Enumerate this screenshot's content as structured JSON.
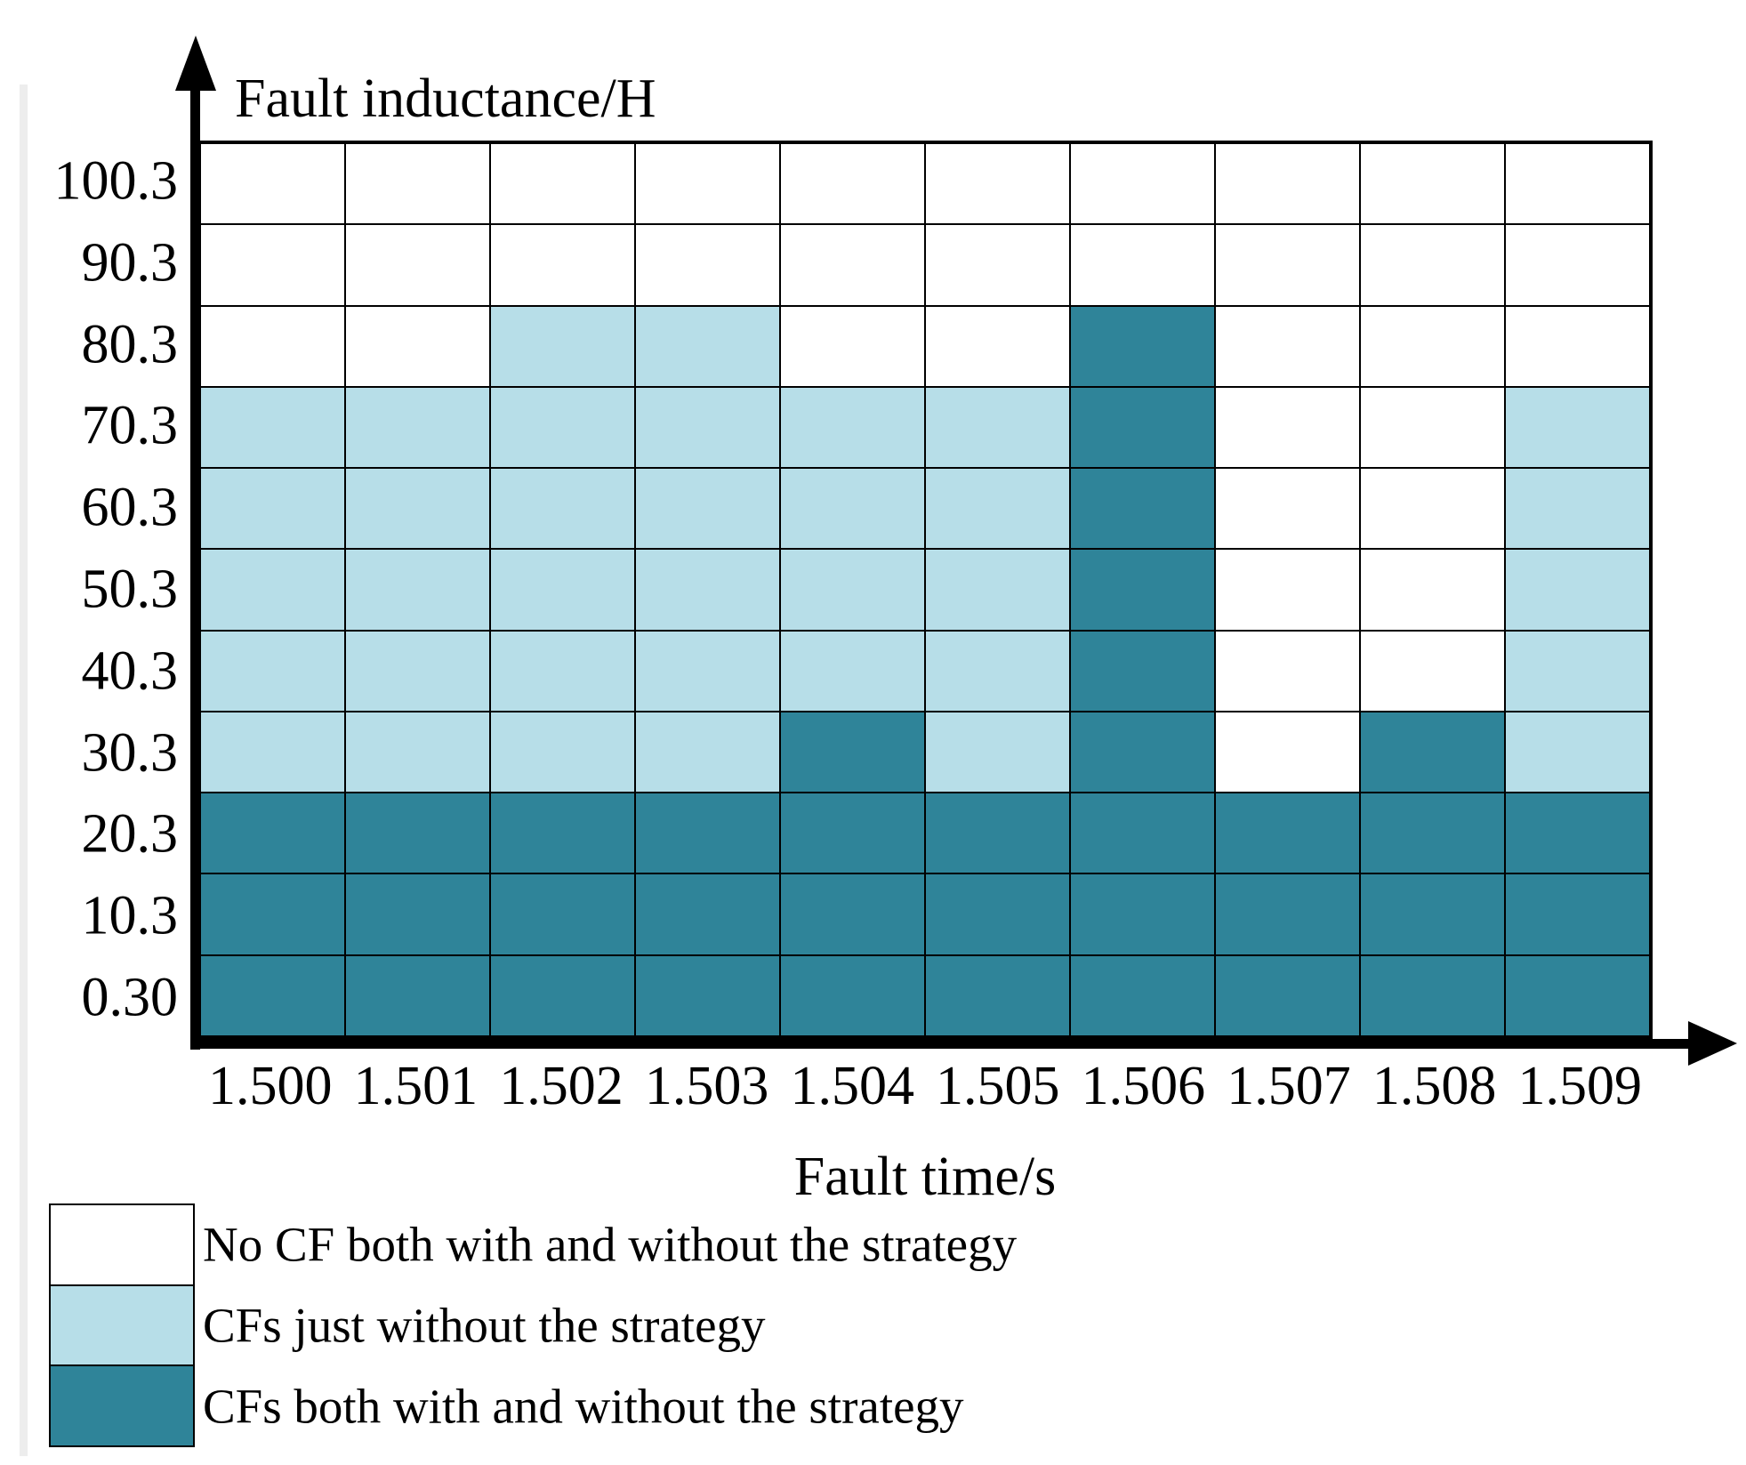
{
  "figure": {
    "y_axis_title": "Fault inductance/H",
    "x_axis_title": "Fault time/s"
  },
  "chart_data": {
    "type": "heatmap",
    "title": "",
    "xlabel": "Fault time/s",
    "ylabel": "Fault inductance/H",
    "x_categories": [
      "1.500",
      "1.501",
      "1.502",
      "1.503",
      "1.504",
      "1.505",
      "1.506",
      "1.507",
      "1.508",
      "1.509"
    ],
    "y_categories_top_to_bottom": [
      "100.3",
      "90.3",
      "80.3",
      "70.3",
      "60.3",
      "50.3",
      "40.3",
      "30.3",
      "20.3",
      "10.3",
      "0.30"
    ],
    "grid": "on",
    "legend_position": "bottom-left",
    "legend": [
      {
        "code": 0,
        "color": "#FFFFFF",
        "label": "No CF both with and without the strategy"
      },
      {
        "code": 1,
        "color": "#B7DEE8",
        "label": "CFs just without the strategy"
      },
      {
        "code": 2,
        "color": "#2F8499",
        "label": "CFs both with and without the strategy"
      }
    ],
    "matrix_rows_top_to_bottom": [
      [
        0,
        0,
        0,
        0,
        0,
        0,
        0,
        0,
        0,
        0
      ],
      [
        0,
        0,
        0,
        0,
        0,
        0,
        0,
        0,
        0,
        0
      ],
      [
        0,
        0,
        1,
        1,
        0,
        0,
        2,
        0,
        0,
        0
      ],
      [
        1,
        1,
        1,
        1,
        1,
        1,
        2,
        0,
        0,
        1
      ],
      [
        1,
        1,
        1,
        1,
        1,
        1,
        2,
        0,
        0,
        1
      ],
      [
        1,
        1,
        1,
        1,
        1,
        1,
        2,
        0,
        0,
        1
      ],
      [
        1,
        1,
        1,
        1,
        1,
        1,
        2,
        0,
        0,
        1
      ],
      [
        1,
        1,
        1,
        1,
        2,
        1,
        2,
        0,
        2,
        1
      ],
      [
        2,
        2,
        2,
        2,
        2,
        2,
        2,
        2,
        2,
        2
      ],
      [
        2,
        2,
        2,
        2,
        2,
        2,
        2,
        2,
        2,
        2
      ],
      [
        2,
        2,
        2,
        2,
        2,
        2,
        2,
        2,
        2,
        2
      ]
    ]
  },
  "colors": {
    "axis": "#000000",
    "grid_line": "#000000",
    "cell_white": "#FFFFFF",
    "cell_light_blue": "#B7DEE8",
    "cell_dark_teal": "#2F8499"
  }
}
